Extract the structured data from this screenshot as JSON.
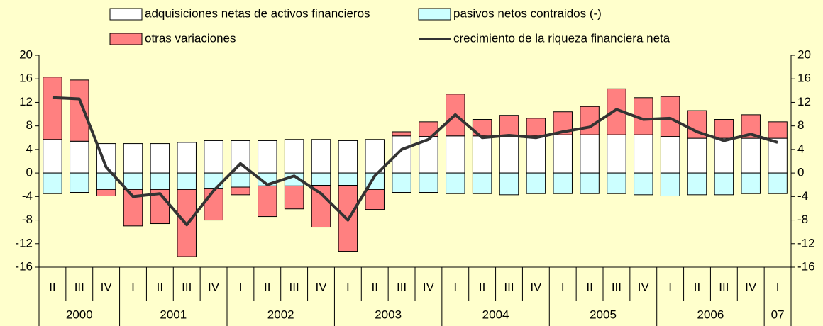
{
  "chart_data": {
    "type": "stacked-bar-line",
    "categories": [
      "II",
      "III",
      "IV",
      "I",
      "II",
      "III",
      "IV",
      "I",
      "II",
      "III",
      "IV",
      "I",
      "II",
      "III",
      "IV",
      "I",
      "II",
      "III",
      "IV",
      "I",
      "II",
      "III",
      "IV",
      "I",
      "II",
      "III",
      "IV",
      "I"
    ],
    "years": [
      "2000",
      "2001",
      "2002",
      "2003",
      "2004",
      "2005",
      "2006",
      "07"
    ],
    "series": [
      {
        "name": "adquisiciones netas de activos financieros",
        "color": "#ffffff",
        "kind": "bar",
        "values": [
          5.7,
          5.4,
          5.0,
          5.0,
          5.0,
          5.2,
          5.5,
          5.5,
          5.5,
          5.7,
          5.7,
          5.5,
          5.7,
          6.3,
          6.2,
          6.3,
          6.3,
          6.3,
          6.3,
          6.5,
          6.5,
          6.5,
          6.5,
          6.2,
          5.9,
          5.9,
          5.9,
          5.9
        ]
      },
      {
        "name": "pasivos netos contraidos (-)",
        "color": "#ccffff",
        "kind": "bar",
        "values": [
          -3.5,
          -3.3,
          -2.8,
          -2.8,
          -2.8,
          -2.8,
          -2.6,
          -2.4,
          -2.2,
          -2.2,
          -2.1,
          -2.1,
          -2.8,
          -3.3,
          -3.3,
          -3.5,
          -3.5,
          -3.7,
          -3.5,
          -3.5,
          -3.5,
          -3.5,
          -3.7,
          -3.9,
          -3.7,
          -3.7,
          -3.5,
          -3.5
        ]
      },
      {
        "name": "otras variaciones",
        "color": "#ff8080",
        "kind": "bar",
        "values": [
          10.6,
          10.4,
          -1.1,
          -6.2,
          -5.8,
          -11.4,
          -5.4,
          -1.3,
          -5.2,
          -3.9,
          -7.1,
          -11.2,
          -3.4,
          0.7,
          2.5,
          7.1,
          2.8,
          3.5,
          3.0,
          3.9,
          4.8,
          7.8,
          6.3,
          6.8,
          4.7,
          3.2,
          4.0,
          2.8
        ]
      },
      {
        "name": "crecimiento de la riqueza financiera neta",
        "color": "#333333",
        "kind": "line",
        "values": [
          12.8,
          12.6,
          1.0,
          -4.0,
          -3.5,
          -8.8,
          -3.0,
          1.6,
          -2.0,
          -0.5,
          -3.5,
          -8.0,
          -0.5,
          4.0,
          5.7,
          9.9,
          6.0,
          6.4,
          6.0,
          7.0,
          7.8,
          10.8,
          9.1,
          9.3,
          7.0,
          5.5,
          6.6,
          5.2
        ]
      }
    ],
    "ylim": [
      -16,
      20
    ],
    "yticks": [
      -16,
      -12,
      -8,
      -4,
      0,
      4,
      8,
      12,
      16,
      20
    ],
    "y2lim": [
      -16,
      20
    ],
    "y2ticks": [
      -16,
      -12,
      -8,
      -4,
      0,
      4,
      8,
      12,
      16,
      20
    ]
  }
}
